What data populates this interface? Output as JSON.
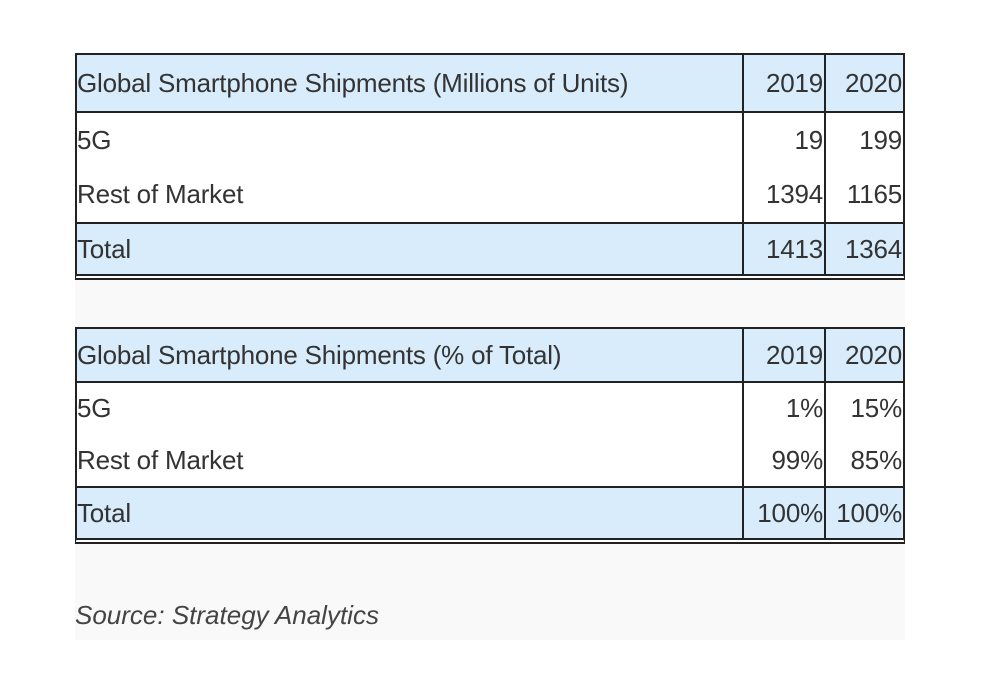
{
  "tables": [
    {
      "header": [
        "Global Smartphone Shipments (Millions of Units)",
        "2019",
        "2020"
      ],
      "rows": [
        [
          "5G",
          "19",
          "199"
        ],
        [
          "Rest of Market",
          "1394",
          "1165"
        ],
        [
          "Total",
          "1413",
          "1364"
        ]
      ]
    },
    {
      "header": [
        "Global Smartphone Shipments (% of Total)",
        "2019",
        "2020"
      ],
      "rows": [
        [
          "5G",
          "1%",
          "15%"
        ],
        [
          "Rest of Market",
          "99%",
          "85%"
        ],
        [
          "Total",
          "100%",
          "100%"
        ]
      ]
    }
  ],
  "source": "Source: Strategy Analytics"
}
